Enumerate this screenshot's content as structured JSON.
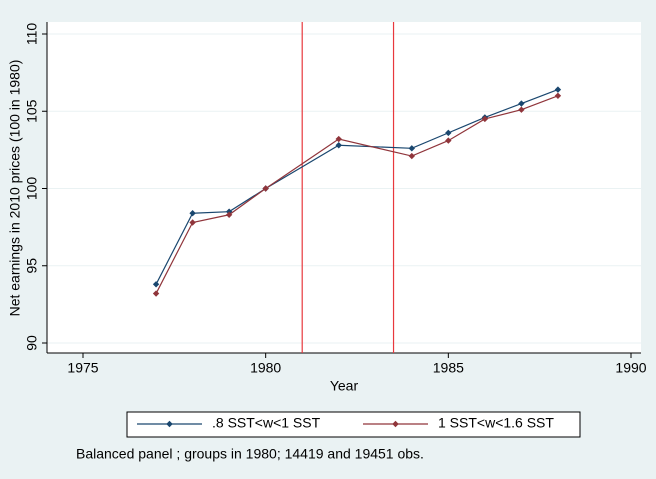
{
  "chart_data": {
    "type": "line",
    "x": [
      1977,
      1978,
      1979,
      1980,
      1982,
      1984,
      1985,
      1986,
      1987,
      1988
    ],
    "series": [
      {
        "name": ".8 SST<w<1 SST",
        "color": "#1a476f",
        "values": [
          93.8,
          98.4,
          98.5,
          100.0,
          102.8,
          102.6,
          103.6,
          104.6,
          105.5,
          106.4
        ]
      },
      {
        "name": "1 SST<w<1.6 SST",
        "color": "#90353b",
        "values": [
          93.2,
          97.8,
          98.3,
          100.0,
          103.2,
          102.1,
          103.1,
          104.5,
          105.1,
          106.0
        ]
      }
    ],
    "xlim": [
      1975,
      1990
    ],
    "xticks": [
      1975,
      1980,
      1985,
      1990
    ],
    "ylim": [
      90,
      110
    ],
    "yticks": [
      90,
      95,
      100,
      105,
      110
    ],
    "xlabel": "Year",
    "ylabel": "Net earnings in 2010 prices (100 in 1980)",
    "xlines": [
      1981,
      1983.5
    ],
    "xline_color": "#e8383d",
    "grid": true,
    "note": "Balanced panel ; groups in 1980; 14419 and 19451 obs."
  }
}
